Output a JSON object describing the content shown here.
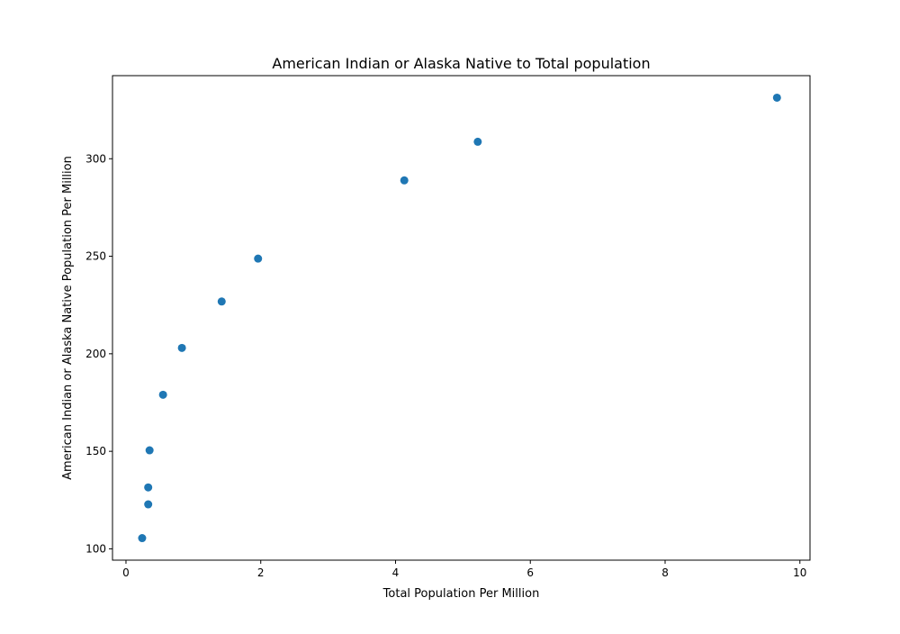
{
  "chart_data": {
    "type": "scatter",
    "title": "American Indian or Alaska Native to Total population",
    "xlabel": "Total Population Per Million",
    "ylabel": "American Indian or Alaska Native Population Per Million",
    "xlim": [
      -0.2,
      10.15
    ],
    "ylim": [
      94.2,
      342.6
    ],
    "xticks": [
      0,
      2,
      4,
      6,
      8,
      10
    ],
    "yticks": [
      100,
      150,
      200,
      250,
      300
    ],
    "grid": false,
    "legend": "none",
    "marker_color": "#1f77b4",
    "points": [
      {
        "x": 0.24,
        "y": 105.5
      },
      {
        "x": 0.33,
        "y": 122.8
      },
      {
        "x": 0.33,
        "y": 131.5
      },
      {
        "x": 0.35,
        "y": 150.5
      },
      {
        "x": 0.55,
        "y": 179.0
      },
      {
        "x": 0.83,
        "y": 203.0
      },
      {
        "x": 1.42,
        "y": 226.8
      },
      {
        "x": 1.96,
        "y": 248.8
      },
      {
        "x": 4.13,
        "y": 288.9
      },
      {
        "x": 5.22,
        "y": 308.7
      },
      {
        "x": 9.66,
        "y": 331.3
      }
    ]
  }
}
